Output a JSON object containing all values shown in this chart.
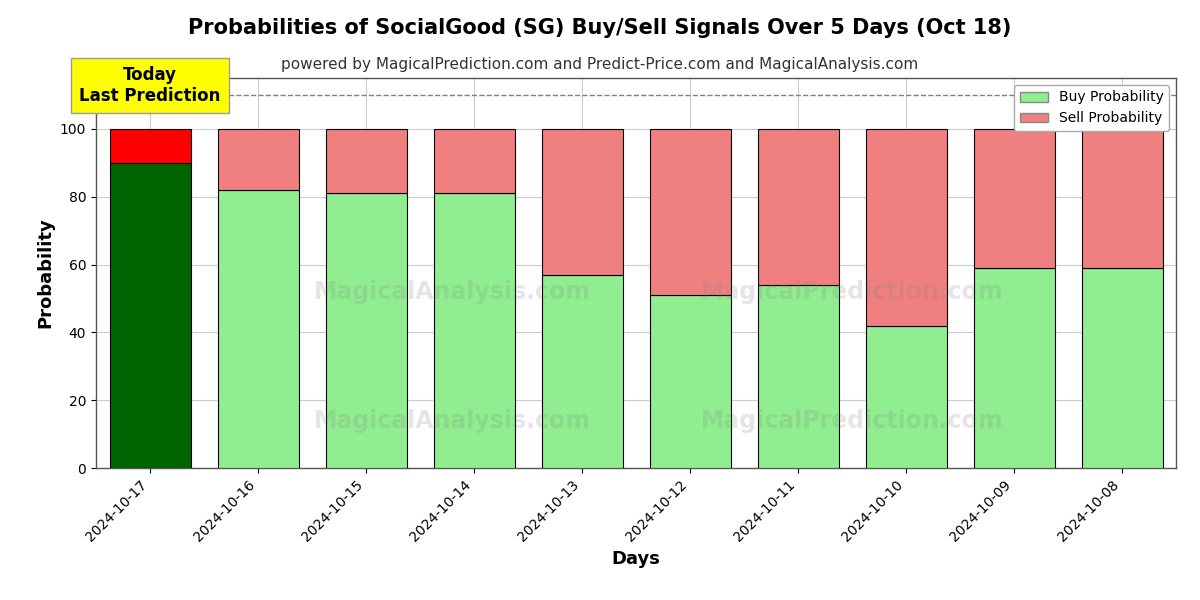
{
  "title": "Probabilities of SocialGood (SG) Buy/Sell Signals Over 5 Days (Oct 18)",
  "subtitle": "powered by MagicalPrediction.com and Predict-Price.com and MagicalAnalysis.com",
  "xlabel": "Days",
  "ylabel": "Probability",
  "categories": [
    "2024-10-17",
    "2024-10-16",
    "2024-10-15",
    "2024-10-14",
    "2024-10-13",
    "2024-10-12",
    "2024-10-11",
    "2024-10-10",
    "2024-10-09",
    "2024-10-08"
  ],
  "buy_values": [
    90,
    82,
    81,
    81,
    57,
    51,
    54,
    42,
    59,
    59
  ],
  "sell_values": [
    10,
    18,
    19,
    19,
    43,
    49,
    46,
    58,
    41,
    41
  ],
  "today_bar_buy_color": "#006400",
  "today_bar_sell_color": "#FF0000",
  "regular_bar_buy_color": "#90EE90",
  "regular_bar_sell_color": "#F08080",
  "today_annotation_bg": "#FFFF00",
  "today_annotation_text": "Today\nLast Prediction",
  "legend_buy_label": "Buy Probability",
  "legend_sell_label": "Sell Probability",
  "ylim": [
    0,
    115
  ],
  "dashed_line_y": 110,
  "watermark_left": "MagicalAnalysis.com",
  "watermark_right": "MagicalPrediction.com",
  "background_color": "#ffffff",
  "bar_edge_color": "#000000",
  "grid_color": "#cccccc",
  "title_fontsize": 15,
  "subtitle_fontsize": 11,
  "axis_label_fontsize": 13,
  "tick_fontsize": 10
}
